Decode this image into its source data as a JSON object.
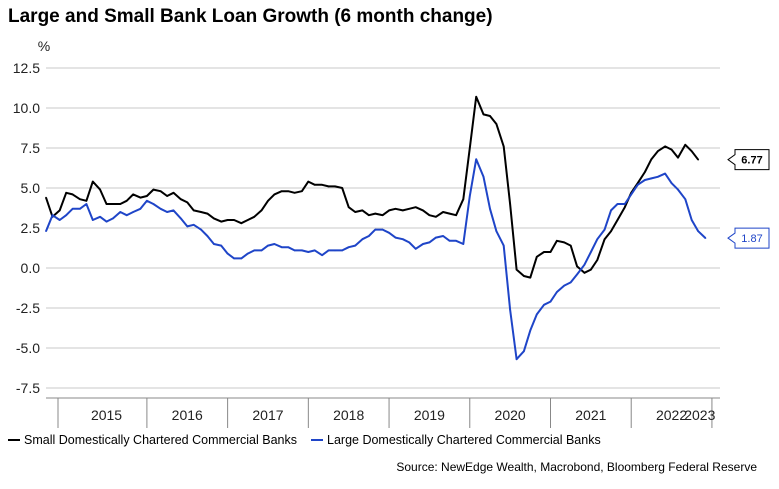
{
  "chart_data": {
    "type": "line",
    "title": "Large and Small Bank Loan Growth (6 month change)",
    "ylabel": "%",
    "ylim": [
      -7.5,
      12.5
    ],
    "yticks": [
      "12.5",
      "10.0",
      "7.5",
      "5.0",
      "2.5",
      "0.0",
      "-2.5",
      "-5.0",
      "-7.5"
    ],
    "xlim": [
      2014.75,
      2023.1
    ],
    "xticks": [
      "2015",
      "2016",
      "2017",
      "2018",
      "2019",
      "2020",
      "2021",
      "2022",
      "2023"
    ],
    "grid": "horizontal",
    "legend_position": "bottom",
    "series": [
      {
        "name": "Small Domestically Chartered Commercial Banks",
        "color": "#000000",
        "last_value_label": "6.77",
        "points": [
          [
            2014.75,
            4.4
          ],
          [
            2014.83,
            3.2
          ],
          [
            2014.92,
            3.6
          ],
          [
            2015.0,
            4.7
          ],
          [
            2015.08,
            4.6
          ],
          [
            2015.17,
            4.3
          ],
          [
            2015.25,
            4.2
          ],
          [
            2015.33,
            5.4
          ],
          [
            2015.42,
            4.9
          ],
          [
            2015.5,
            4.0
          ],
          [
            2015.58,
            4.0
          ],
          [
            2015.67,
            4.0
          ],
          [
            2015.75,
            4.2
          ],
          [
            2015.83,
            4.6
          ],
          [
            2015.92,
            4.4
          ],
          [
            2016.0,
            4.5
          ],
          [
            2016.08,
            4.9
          ],
          [
            2016.17,
            4.8
          ],
          [
            2016.25,
            4.5
          ],
          [
            2016.33,
            4.7
          ],
          [
            2016.42,
            4.3
          ],
          [
            2016.5,
            4.1
          ],
          [
            2016.58,
            3.6
          ],
          [
            2016.67,
            3.5
          ],
          [
            2016.75,
            3.4
          ],
          [
            2016.83,
            3.1
          ],
          [
            2016.92,
            2.9
          ],
          [
            2017.0,
            3.0
          ],
          [
            2017.08,
            3.0
          ],
          [
            2017.17,
            2.8
          ],
          [
            2017.25,
            3.0
          ],
          [
            2017.33,
            3.2
          ],
          [
            2017.42,
            3.6
          ],
          [
            2017.5,
            4.2
          ],
          [
            2017.58,
            4.6
          ],
          [
            2017.67,
            4.8
          ],
          [
            2017.75,
            4.8
          ],
          [
            2017.83,
            4.7
          ],
          [
            2017.92,
            4.8
          ],
          [
            2018.0,
            5.4
          ],
          [
            2018.08,
            5.2
          ],
          [
            2018.17,
            5.2
          ],
          [
            2018.25,
            5.1
          ],
          [
            2018.33,
            5.1
          ],
          [
            2018.42,
            5.0
          ],
          [
            2018.5,
            3.8
          ],
          [
            2018.58,
            3.5
          ],
          [
            2018.67,
            3.6
          ],
          [
            2018.75,
            3.3
          ],
          [
            2018.83,
            3.4
          ],
          [
            2018.92,
            3.3
          ],
          [
            2019.0,
            3.6
          ],
          [
            2019.08,
            3.7
          ],
          [
            2019.17,
            3.6
          ],
          [
            2019.25,
            3.7
          ],
          [
            2019.33,
            3.8
          ],
          [
            2019.42,
            3.6
          ],
          [
            2019.5,
            3.3
          ],
          [
            2019.58,
            3.2
          ],
          [
            2019.67,
            3.5
          ],
          [
            2019.75,
            3.4
          ],
          [
            2019.83,
            3.3
          ],
          [
            2019.92,
            4.3
          ],
          [
            2020.0,
            7.5
          ],
          [
            2020.08,
            10.7
          ],
          [
            2020.17,
            9.6
          ],
          [
            2020.25,
            9.5
          ],
          [
            2020.33,
            9.0
          ],
          [
            2020.42,
            7.6
          ],
          [
            2020.5,
            4.0
          ],
          [
            2020.58,
            -0.1
          ],
          [
            2020.67,
            -0.5
          ],
          [
            2020.75,
            -0.6
          ],
          [
            2020.83,
            0.7
          ],
          [
            2020.92,
            1.0
          ],
          [
            2021.0,
            1.0
          ],
          [
            2021.08,
            1.7
          ],
          [
            2021.17,
            1.6
          ],
          [
            2021.25,
            1.4
          ],
          [
            2021.33,
            0.1
          ],
          [
            2021.42,
            -0.3
          ],
          [
            2021.5,
            -0.1
          ],
          [
            2021.58,
            0.5
          ],
          [
            2021.67,
            1.8
          ],
          [
            2021.75,
            2.3
          ],
          [
            2021.83,
            3.0
          ],
          [
            2021.92,
            3.8
          ],
          [
            2022.0,
            4.7
          ],
          [
            2022.08,
            5.3
          ],
          [
            2022.17,
            6.0
          ],
          [
            2022.25,
            6.8
          ],
          [
            2022.33,
            7.3
          ],
          [
            2022.42,
            7.6
          ],
          [
            2022.5,
            7.4
          ],
          [
            2022.58,
            6.9
          ],
          [
            2022.67,
            7.7
          ],
          [
            2022.75,
            7.3
          ],
          [
            2022.83,
            6.77
          ]
        ]
      },
      {
        "name": "Large Domestically Chartered Commercial Banks",
        "color": "#1f45c8",
        "last_value_label": "1.87",
        "points": [
          [
            2014.75,
            2.3
          ],
          [
            2014.83,
            3.3
          ],
          [
            2014.92,
            3.0
          ],
          [
            2015.0,
            3.3
          ],
          [
            2015.08,
            3.7
          ],
          [
            2015.17,
            3.7
          ],
          [
            2015.25,
            4.0
          ],
          [
            2015.33,
            3.0
          ],
          [
            2015.42,
            3.2
          ],
          [
            2015.5,
            2.9
          ],
          [
            2015.58,
            3.1
          ],
          [
            2015.67,
            3.5
          ],
          [
            2015.75,
            3.3
          ],
          [
            2015.83,
            3.5
          ],
          [
            2015.92,
            3.7
          ],
          [
            2016.0,
            4.2
          ],
          [
            2016.08,
            4.0
          ],
          [
            2016.17,
            3.7
          ],
          [
            2016.25,
            3.5
          ],
          [
            2016.33,
            3.6
          ],
          [
            2016.42,
            3.1
          ],
          [
            2016.5,
            2.6
          ],
          [
            2016.58,
            2.7
          ],
          [
            2016.67,
            2.4
          ],
          [
            2016.75,
            2.0
          ],
          [
            2016.83,
            1.5
          ],
          [
            2016.92,
            1.4
          ],
          [
            2017.0,
            0.9
          ],
          [
            2017.08,
            0.6
          ],
          [
            2017.17,
            0.6
          ],
          [
            2017.25,
            0.9
          ],
          [
            2017.33,
            1.1
          ],
          [
            2017.42,
            1.1
          ],
          [
            2017.5,
            1.4
          ],
          [
            2017.58,
            1.5
          ],
          [
            2017.67,
            1.3
          ],
          [
            2017.75,
            1.3
          ],
          [
            2017.83,
            1.1
          ],
          [
            2017.92,
            1.1
          ],
          [
            2018.0,
            1.0
          ],
          [
            2018.08,
            1.1
          ],
          [
            2018.17,
            0.8
          ],
          [
            2018.25,
            1.1
          ],
          [
            2018.33,
            1.1
          ],
          [
            2018.42,
            1.1
          ],
          [
            2018.5,
            1.3
          ],
          [
            2018.58,
            1.4
          ],
          [
            2018.67,
            1.8
          ],
          [
            2018.75,
            2.0
          ],
          [
            2018.83,
            2.4
          ],
          [
            2018.92,
            2.4
          ],
          [
            2019.0,
            2.2
          ],
          [
            2019.08,
            1.9
          ],
          [
            2019.17,
            1.8
          ],
          [
            2019.25,
            1.6
          ],
          [
            2019.33,
            1.2
          ],
          [
            2019.42,
            1.5
          ],
          [
            2019.5,
            1.6
          ],
          [
            2019.58,
            1.9
          ],
          [
            2019.67,
            2.0
          ],
          [
            2019.75,
            1.7
          ],
          [
            2019.83,
            1.7
          ],
          [
            2019.92,
            1.5
          ],
          [
            2020.0,
            4.5
          ],
          [
            2020.08,
            6.8
          ],
          [
            2020.17,
            5.7
          ],
          [
            2020.25,
            3.7
          ],
          [
            2020.33,
            2.3
          ],
          [
            2020.42,
            1.4
          ],
          [
            2020.5,
            -2.6
          ],
          [
            2020.58,
            -5.7
          ],
          [
            2020.67,
            -5.2
          ],
          [
            2020.75,
            -3.9
          ],
          [
            2020.83,
            -2.9
          ],
          [
            2020.92,
            -2.3
          ],
          [
            2021.0,
            -2.1
          ],
          [
            2021.08,
            -1.5
          ],
          [
            2021.17,
            -1.1
          ],
          [
            2021.25,
            -0.9
          ],
          [
            2021.33,
            -0.4
          ],
          [
            2021.42,
            0.2
          ],
          [
            2021.5,
            1.0
          ],
          [
            2021.58,
            1.8
          ],
          [
            2021.67,
            2.4
          ],
          [
            2021.75,
            3.6
          ],
          [
            2021.83,
            4.0
          ],
          [
            2021.92,
            4.0
          ],
          [
            2022.0,
            4.6
          ],
          [
            2022.08,
            5.2
          ],
          [
            2022.17,
            5.5
          ],
          [
            2022.25,
            5.6
          ],
          [
            2022.33,
            5.7
          ],
          [
            2022.42,
            5.9
          ],
          [
            2022.5,
            5.3
          ],
          [
            2022.58,
            4.9
          ],
          [
            2022.67,
            4.3
          ],
          [
            2022.75,
            3.0
          ],
          [
            2022.83,
            2.3
          ],
          [
            2022.92,
            1.87
          ]
        ]
      }
    ]
  },
  "source_note": "Source: NewEdge Wealth, Macrobond, Bloomberg Federal Reserve"
}
